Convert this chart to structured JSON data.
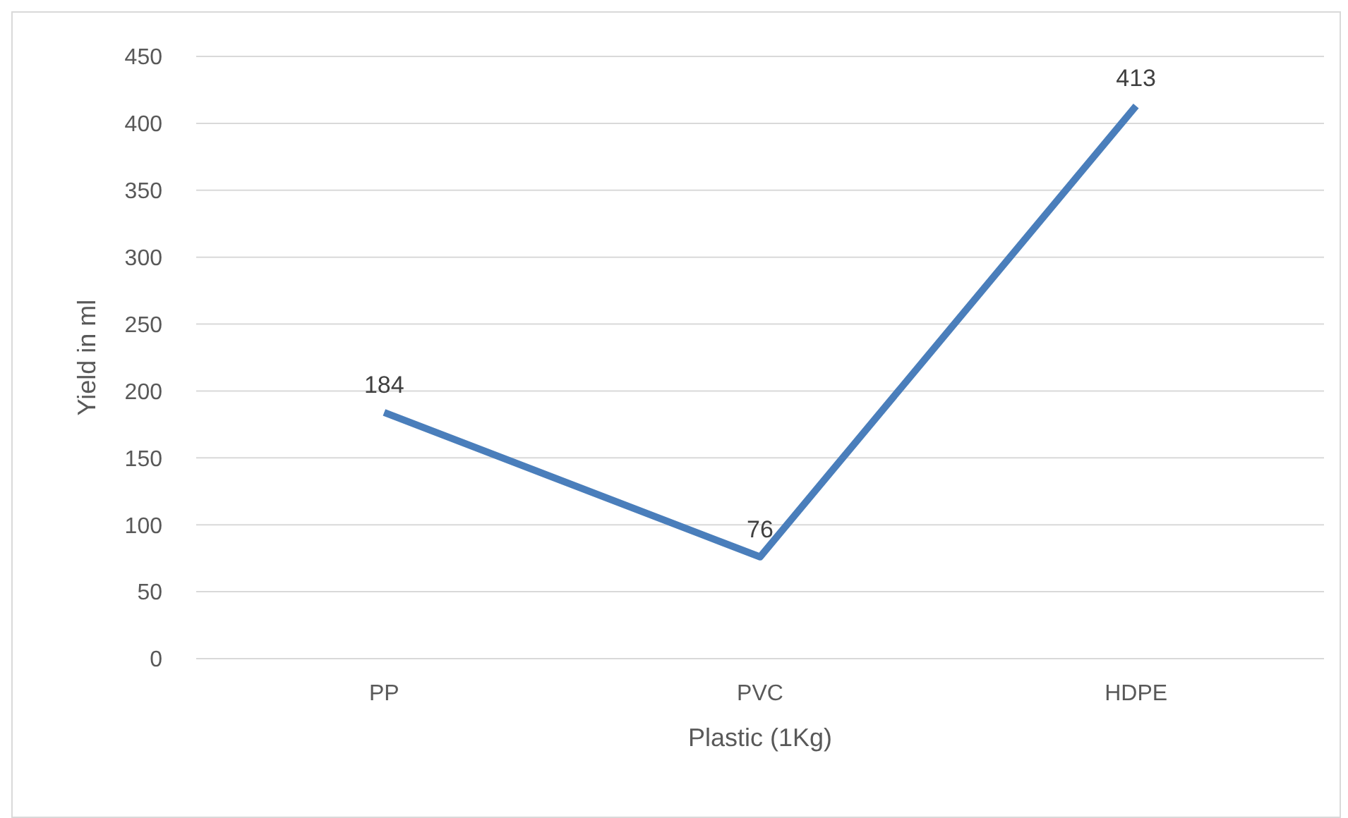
{
  "chart_data": {
    "type": "line",
    "xlabel": "Plastic (1Kg)",
    "ylabel": "Yield in ml",
    "categories": [
      "PP",
      "PVC",
      "HDPE"
    ],
    "series": [
      {
        "color": "#4a7ebb",
        "values": [
          184,
          76,
          413
        ]
      }
    ],
    "ylim": [
      0,
      450
    ],
    "yticks": [
      0,
      50,
      100,
      150,
      200,
      250,
      300,
      350,
      400,
      450
    ],
    "grid": "y",
    "legend": false,
    "marker": "none",
    "line_style": "solid",
    "data_labels": true
  }
}
